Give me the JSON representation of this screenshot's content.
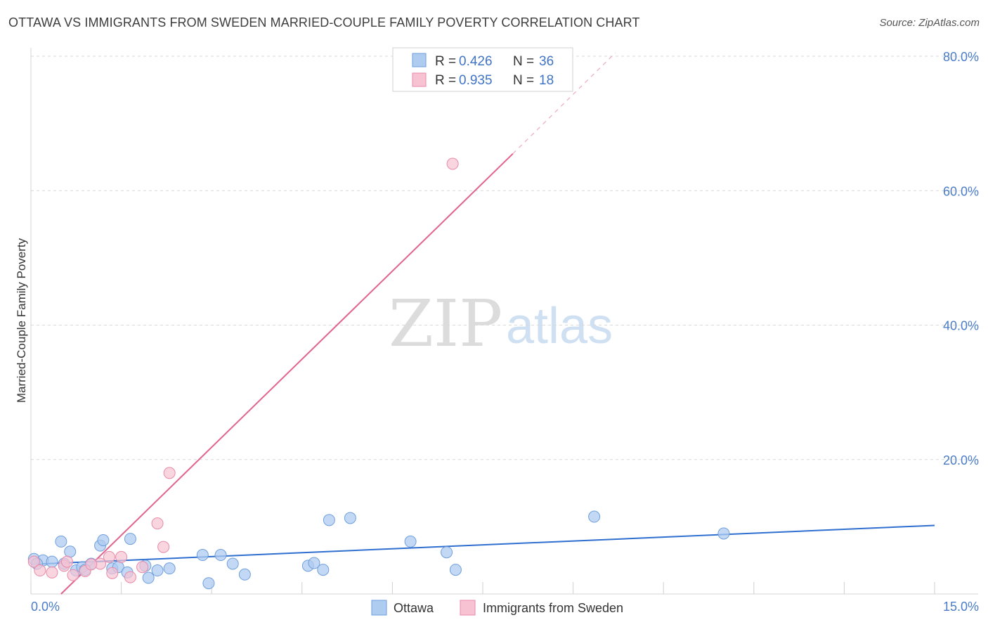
{
  "title": "OTTAWA VS IMMIGRANTS FROM SWEDEN MARRIED-COUPLE FAMILY POVERTY CORRELATION CHART",
  "source": "Source: ZipAtlas.com",
  "watermark": {
    "zip": "ZIP",
    "atlas": "atlas"
  },
  "colors": {
    "ottawa_fill": "#aecbf0",
    "ottawa_stroke": "#6f9fdc",
    "ottawa_line": "#2f6fcf",
    "sweden_fill": "#f7c3d3",
    "sweden_stroke": "#e88aa8",
    "sweden_line": "#e0648e",
    "grid": "#d9d9d9",
    "tick_text": "#4a7cc7"
  },
  "legend": {
    "rows": [
      {
        "r_label": "R =",
        "r_value": "0.426",
        "n_label": "N =",
        "n_value": "36"
      },
      {
        "r_label": "R =",
        "r_value": "0.935",
        "n_label": "N =",
        "n_value": "18"
      }
    ]
  },
  "chart_data": {
    "type": "scatter",
    "title": "OTTAWA VS IMMIGRANTS FROM SWEDEN MARRIED-COUPLE FAMILY POVERTY CORRELATION CHART",
    "xlabel": "",
    "ylabel": "Married-Couple Family Poverty",
    "xlim": [
      0,
      15
    ],
    "ylim": [
      0,
      80
    ],
    "x_tick_labels": [
      "0.0%",
      "15.0%"
    ],
    "y_ticks": [
      20,
      40,
      60,
      80
    ],
    "y_tick_labels": [
      "20.0%",
      "40.0%",
      "60.0%",
      "80.0%"
    ],
    "grid": true,
    "legend_position": "top-center",
    "series": [
      {
        "name": "Ottawa",
        "points": [
          [
            0.05,
            5.2
          ],
          [
            0.2,
            5.0
          ],
          [
            0.35,
            4.8
          ],
          [
            0.5,
            7.8
          ],
          [
            0.55,
            4.5
          ],
          [
            0.65,
            6.3
          ],
          [
            0.75,
            3.5
          ],
          [
            0.85,
            4.0
          ],
          [
            1.0,
            4.5
          ],
          [
            1.15,
            7.2
          ],
          [
            1.2,
            8.0
          ],
          [
            1.35,
            3.8
          ],
          [
            1.45,
            4.0
          ],
          [
            1.6,
            3.2
          ],
          [
            1.65,
            8.2
          ],
          [
            1.9,
            4.2
          ],
          [
            1.95,
            2.4
          ],
          [
            2.1,
            3.5
          ],
          [
            2.3,
            3.8
          ],
          [
            2.85,
            5.8
          ],
          [
            2.95,
            1.6
          ],
          [
            3.15,
            5.8
          ],
          [
            3.35,
            4.5
          ],
          [
            3.55,
            2.9
          ],
          [
            4.6,
            4.2
          ],
          [
            4.7,
            4.6
          ],
          [
            4.85,
            3.6
          ],
          [
            4.95,
            11.0
          ],
          [
            5.3,
            11.3
          ],
          [
            6.3,
            7.8
          ],
          [
            6.9,
            6.2
          ],
          [
            7.05,
            3.6
          ],
          [
            9.35,
            11.5
          ],
          [
            11.5,
            9.0
          ],
          [
            0.1,
            4.5
          ],
          [
            0.9,
            3.6
          ]
        ],
        "trend": {
          "x": [
            0,
            15
          ],
          "y": [
            4.4,
            10.2
          ]
        }
      },
      {
        "name": "Immigrants from Sweden",
        "points": [
          [
            0.05,
            4.8
          ],
          [
            0.15,
            3.5
          ],
          [
            0.35,
            3.2
          ],
          [
            0.55,
            4.2
          ],
          [
            0.7,
            2.8
          ],
          [
            0.9,
            3.4
          ],
          [
            1.15,
            4.5
          ],
          [
            1.3,
            5.5
          ],
          [
            1.35,
            3.1
          ],
          [
            1.5,
            5.5
          ],
          [
            1.65,
            2.5
          ],
          [
            1.85,
            4.0
          ],
          [
            2.1,
            10.5
          ],
          [
            2.2,
            7.0
          ],
          [
            2.3,
            18.0
          ],
          [
            7.0,
            64.0
          ],
          [
            0.6,
            4.8
          ],
          [
            1.0,
            4.4
          ]
        ],
        "trend": {
          "x": [
            0.5,
            8.0
          ],
          "y": [
            0,
            65.5
          ]
        },
        "trend_dashed": {
          "x": [
            8.0,
            9.7
          ],
          "y": [
            65.5,
            80.5
          ]
        }
      }
    ]
  }
}
